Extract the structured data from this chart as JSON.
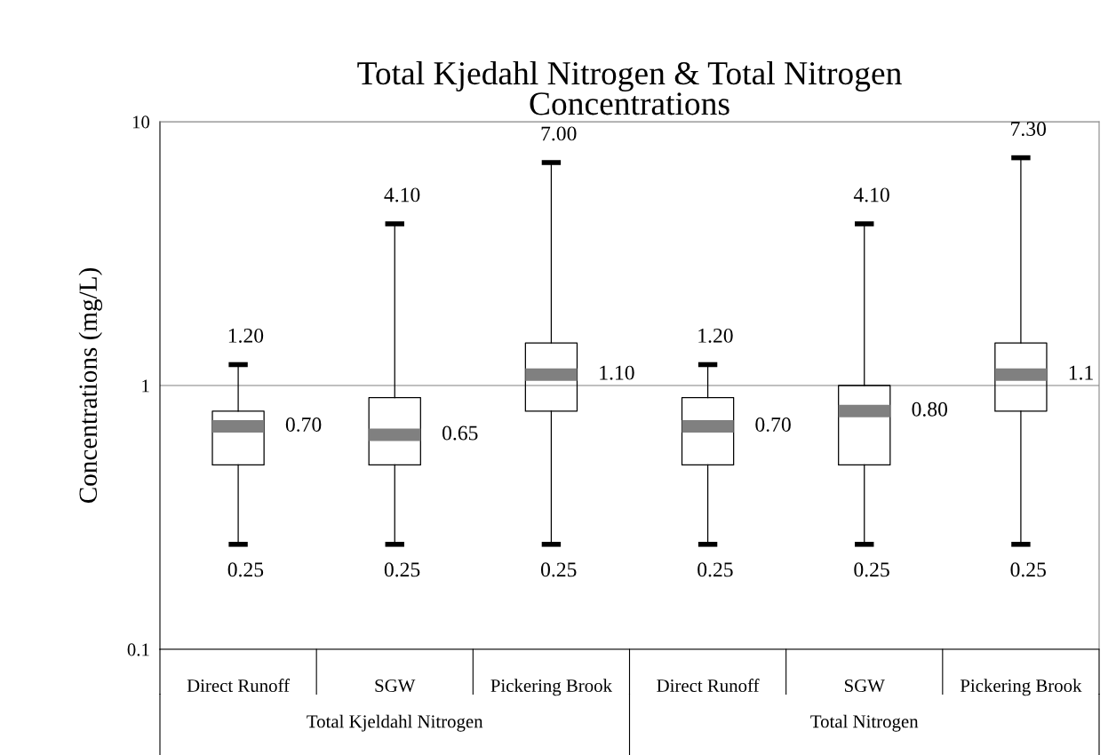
{
  "chart_data": {
    "type": "box",
    "title": "Total Kjedahl Nitrogen & Total Nitrogen\nConcentrations",
    "ylabel": "Concentrations (mg/L)",
    "categories": [
      "Direct Runoff",
      "SGW",
      "Pickering Brook",
      "Direct Runoff",
      "SGW",
      "Pickering Brook"
    ],
    "boxes": [
      {
        "low": 0.25,
        "q1": 0.5,
        "median": 0.7,
        "q3": 0.8,
        "high": 1.2
      },
      {
        "low": 0.25,
        "q1": 0.5,
        "median": 0.65,
        "q3": 0.9,
        "high": 4.1
      },
      {
        "low": 0.25,
        "q1": 0.8,
        "median": 1.1,
        "q3": 1.45,
        "high": 7.0
      },
      {
        "low": 0.25,
        "q1": 0.5,
        "median": 0.7,
        "q3": 0.9,
        "high": 1.2
      },
      {
        "low": 0.25,
        "q1": 0.5,
        "median": 0.8,
        "q3": 1.0,
        "high": 4.1
      },
      {
        "low": 0.25,
        "q1": 0.8,
        "median": 1.1,
        "q3": 1.45,
        "high": 7.3
      }
    ],
    "log": "y",
    "ylim": [
      0.1,
      10
    ],
    "yticks": [
      0.1,
      1,
      10
    ],
    "grid": "y",
    "annotations": [
      "1.20",
      "0.70",
      "0.25",
      "4.10",
      "0.65",
      "0.25",
      "7.00",
      "1.10",
      "0.25",
      "1.20",
      "0.70",
      "0.25",
      "4.10",
      "0.80",
      "0.25",
      "7.30",
      "1.1",
      "0.25",
      "Total Kjeldahl Nitrogen",
      "Total Nitrogen"
    ]
  }
}
